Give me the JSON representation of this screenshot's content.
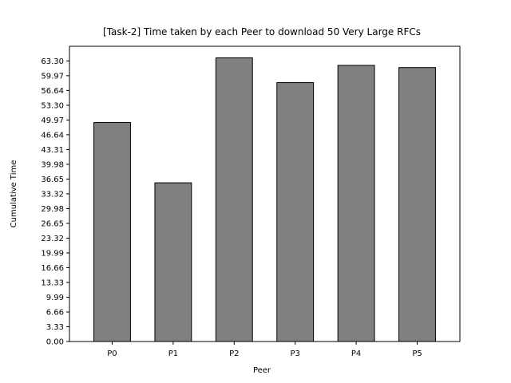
{
  "chart_data": {
    "type": "bar",
    "title": "[Task-2] Time taken by each Peer to download 50 Very Large RFCs",
    "xlabel": "Peer",
    "ylabel": "Cumulative Time",
    "categories": [
      "P0",
      "P1",
      "P2",
      "P3",
      "P4",
      "P5"
    ],
    "values": [
      49.4,
      35.8,
      64.0,
      58.4,
      62.3,
      61.8
    ],
    "yticks": [
      "0.00",
      "3.33",
      "6.66",
      "9.99",
      "13.33",
      "16.66",
      "19.99",
      "23.32",
      "26.65",
      "29.98",
      "33.32",
      "36.65",
      "39.98",
      "43.31",
      "46.64",
      "49.97",
      "53.30",
      "56.64",
      "59.97",
      "63.30"
    ],
    "ylim": [
      0,
      66.6
    ],
    "grid": false,
    "legend": "none",
    "colors": {
      "bar_fill": "#808080",
      "bar_edge": "#000000"
    }
  }
}
